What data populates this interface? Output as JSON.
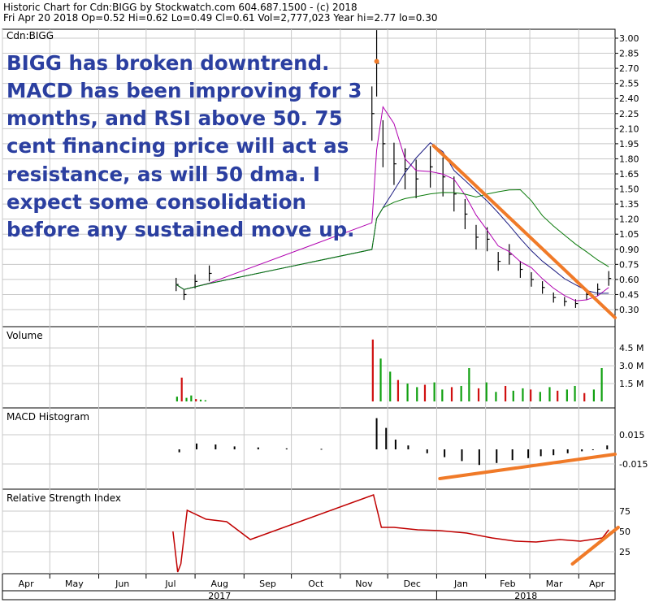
{
  "header": {
    "line1": "Historic Chart for Cdn:BIGG by Stockwatch.com 604.687.1500 - (c) 2018",
    "line2": "Fri Apr 20 2018  Op=0.52  Hi=0.62  Lo=0.49  Cl=0.61  Vol=2,777,023  Year hi=2.77  lo=0.30"
  },
  "symbol_label": "Cdn:BIGG",
  "annotation": [
    "BIGG has broken downtrend.",
    "MACD has been improving for 3",
    "months, and RSI above 50.  75",
    "cent financing price will act as",
    "resistance, as will 50 dma.  I",
    "expect some consolidation",
    "before any sustained move up."
  ],
  "panels": {
    "volume": "Volume",
    "macd": "MACD Histogram",
    "rsi": "Relative Strength Index"
  },
  "colors": {
    "price": "#000000",
    "ma_short": "#b000b0",
    "ma_50": "#1a1a80",
    "ma_200": "#0a7a0a",
    "vol_up": "#10a010",
    "vol_down": "#d01010",
    "rsi": "#c00000",
    "trendline": "#f07a28",
    "annotation": "#2b3fa0"
  },
  "chart_data": [
    {
      "type": "line",
      "panel": "price",
      "ylabel": "",
      "y_ticks": [
        "3.00",
        "2.85",
        "2.70",
        "2.55",
        "2.40",
        "2.25",
        "2.10",
        "1.95",
        "1.80",
        "1.65",
        "1.50",
        "1.35",
        "1.20",
        "1.05",
        "0.90",
        "0.75",
        "0.60",
        "0.45",
        "0.30"
      ],
      "x_ticks": [
        "Apr",
        "May",
        "Jun",
        "Jul",
        "Aug",
        "Sep",
        "Oct",
        "Nov",
        "Dec",
        "Jan",
        "Feb",
        "Mar",
        "Apr"
      ],
      "x_years": [
        "2017",
        "2018"
      ],
      "series": [
        {
          "x": [
            "2017-07-20",
            "2017-07-25",
            "2017-08-01",
            "2017-08-10",
            "2017-11-21",
            "2017-11-24",
            "2017-11-28",
            "2017-12-05",
            "2017-12-12",
            "2017-12-19",
            "2017-12-28",
            "2018-01-05",
            "2018-01-12",
            "2018-01-19",
            "2018-01-26",
            "2018-02-02",
            "2018-02-09",
            "2018-02-16",
            "2018-02-23",
            "2018-03-02",
            "2018-03-09",
            "2018-03-16",
            "2018-03-23",
            "2018-03-30",
            "2018-04-06",
            "2018-04-13",
            "2018-04-20"
          ],
          "values": [
            0.55,
            0.45,
            0.58,
            0.66,
            2.25,
            2.75,
            1.95,
            1.75,
            1.7,
            1.6,
            1.72,
            1.62,
            1.45,
            1.25,
            1.02,
            1.0,
            0.78,
            0.85,
            0.7,
            0.6,
            0.52,
            0.42,
            0.38,
            0.36,
            0.45,
            0.5,
            0.61
          ]
        }
      ],
      "trendline_points": [
        [
          "2017-12-30",
          1.93
        ],
        [
          "2018-04-24",
          0.22
        ]
      ]
    },
    {
      "type": "bar",
      "panel": "volume",
      "y_ticks": [
        "4.5 M",
        "3.0 M",
        "1.5 M"
      ],
      "values_million": [
        0.4,
        2.0,
        0.3,
        0.5,
        0.2,
        0.15,
        0.1,
        5.2,
        3.6,
        2.5,
        1.8,
        1.5,
        1.2,
        1.4,
        1.6,
        1.0,
        1.2,
        1.3,
        2.8,
        1.1,
        1.6,
        0.8,
        1.3,
        0.9,
        1.1,
        1.0,
        0.8,
        1.2,
        0.9,
        1.0,
        1.3,
        0.7,
        1.0,
        2.8
      ]
    },
    {
      "type": "bar",
      "panel": "macd",
      "y_ticks": [
        "0.015",
        "-0.015"
      ],
      "values": [
        -0.003,
        0.006,
        0.005,
        0.003,
        0.002,
        0.001,
        0.0005,
        0.032,
        0.022,
        0.01,
        0.004,
        -0.004,
        -0.008,
        -0.012,
        -0.016,
        -0.014,
        -0.011,
        -0.009,
        -0.007,
        -0.006,
        -0.004,
        -0.002,
        0.0,
        0.004
      ],
      "trendline_points": [
        [
          "2018-01-03",
          -0.03
        ],
        [
          "2018-04-24",
          -0.005
        ]
      ]
    },
    {
      "type": "line",
      "panel": "rsi",
      "y_ticks": [
        "75",
        "50",
        "25"
      ],
      "series": [
        {
          "x": [
            "2017-07-18",
            "2017-07-21",
            "2017-07-23",
            "2017-07-27",
            "2017-08-08",
            "2017-08-21",
            "2017-09-05",
            "2017-11-22",
            "2017-11-27",
            "2017-12-05",
            "2017-12-20",
            "2018-01-03",
            "2018-01-20",
            "2018-02-05",
            "2018-02-20",
            "2018-03-05",
            "2018-03-20",
            "2018-04-02",
            "2018-04-16",
            "2018-04-20"
          ],
          "values": [
            50,
            0,
            10,
            76,
            65,
            62,
            40,
            95,
            55,
            55,
            52,
            51,
            48,
            42,
            38,
            37,
            40,
            38,
            42,
            52
          ]
        }
      ],
      "trendline_points": [
        [
          "2018-03-28",
          10
        ],
        [
          "2018-04-26",
          55
        ]
      ]
    }
  ]
}
